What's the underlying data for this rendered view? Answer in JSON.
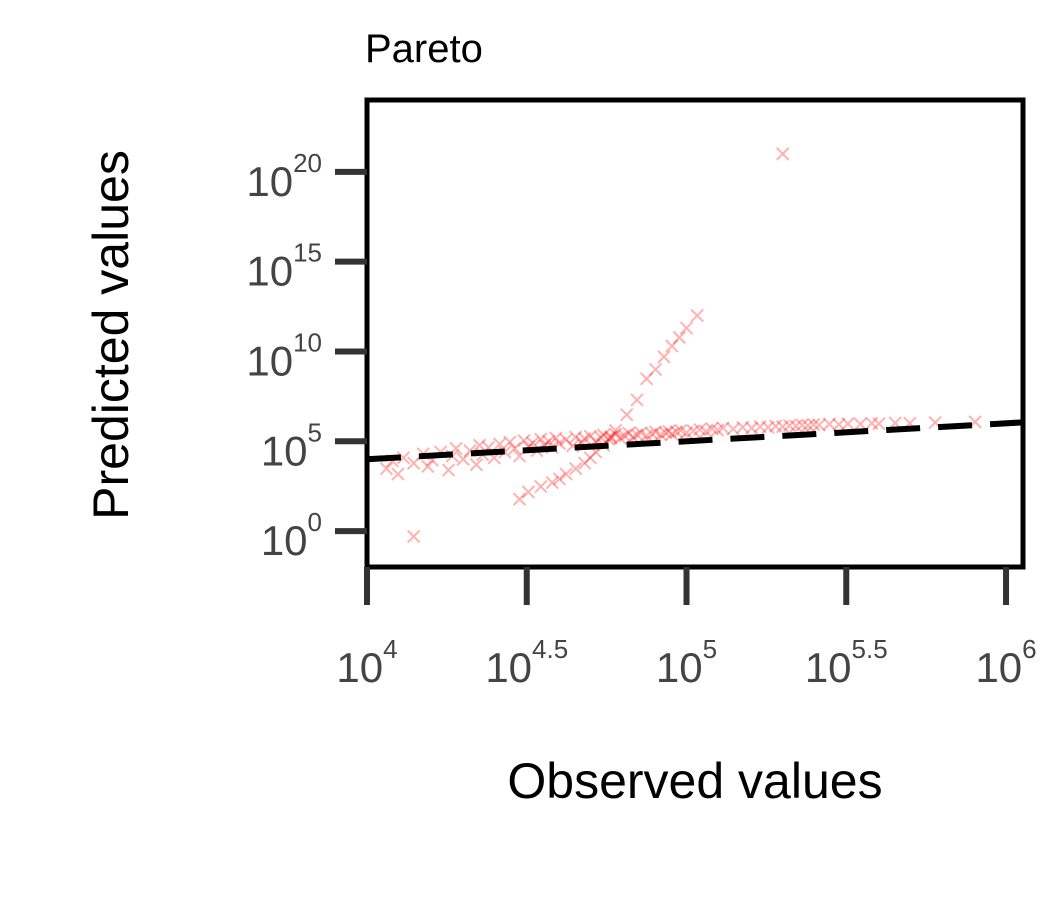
{
  "chart_data": {
    "type": "scatter",
    "title": "Pareto",
    "xlabel": "Observed values",
    "ylabel": "Predicted values",
    "x_scale": "log",
    "y_scale": "log",
    "xlim": [
      10000,
      1130000
    ],
    "ylim": [
      0.01,
      1e+24
    ],
    "x_ticks": [
      {
        "base": "10",
        "exp": "4"
      },
      {
        "base": "10",
        "exp": "4.5"
      },
      {
        "base": "10",
        "exp": "5"
      },
      {
        "base": "10",
        "exp": "5.5"
      },
      {
        "base": "10",
        "exp": "6"
      }
    ],
    "y_ticks": [
      {
        "base": "10",
        "exp": "0"
      },
      {
        "base": "10",
        "exp": "5"
      },
      {
        "base": "10",
        "exp": "10"
      },
      {
        "base": "10",
        "exp": "15"
      },
      {
        "base": "10",
        "exp": "20"
      }
    ],
    "grid": false,
    "marker": "x",
    "marker_color": "#ff0000",
    "reference_line": {
      "style": "dashed",
      "color": "#000000",
      "points": [
        [
          10000,
          10000
        ],
        [
          1130000,
          1130000
        ]
      ]
    },
    "series": [
      {
        "points": [
          [
            11500,
            3000
          ],
          [
            12000,
            8000
          ],
          [
            12500,
            1500
          ],
          [
            13000,
            12000
          ],
          [
            14000,
            6000
          ],
          [
            15000,
            20000
          ],
          [
            15500,
            4000
          ],
          [
            16000,
            9000
          ],
          [
            17000,
            25000
          ],
          [
            18000,
            2500
          ],
          [
            18500,
            15000
          ],
          [
            19000,
            40000
          ],
          [
            20000,
            10000
          ],
          [
            21000,
            30000
          ],
          [
            22000,
            5000
          ],
          [
            22500,
            60000
          ],
          [
            23000,
            18000
          ],
          [
            24000,
            45000
          ],
          [
            25000,
            12000
          ],
          [
            26000,
            70000
          ],
          [
            27000,
            25000
          ],
          [
            28000,
            90000
          ],
          [
            29000,
            40000
          ],
          [
            30000,
            15000
          ],
          [
            31000,
            110000
          ],
          [
            32000,
            50000
          ],
          [
            33000,
            80000
          ],
          [
            34000,
            30000
          ],
          [
            35000,
            130000
          ],
          [
            36000,
            60000
          ],
          [
            37000,
            100000
          ],
          [
            38000,
            45000
          ],
          [
            39000,
            150000
          ],
          [
            40000,
            75000
          ],
          [
            42000,
            120000
          ],
          [
            44000,
            55000
          ],
          [
            45000,
            170000
          ],
          [
            47000,
            90000
          ],
          [
            48000,
            140000
          ],
          [
            50000,
            190000
          ],
          [
            52000,
            100000
          ],
          [
            54000,
            160000
          ],
          [
            55000,
            220000
          ],
          [
            57000,
            130000
          ],
          [
            58000,
            180000
          ],
          [
            60000,
            250000
          ],
          [
            62000,
            150000
          ],
          [
            64000,
            200000
          ],
          [
            66000,
            280000
          ],
          [
            68000,
            170000
          ],
          [
            70000,
            230000
          ],
          [
            72000,
            300000
          ],
          [
            75000,
            200000
          ],
          [
            78000,
            260000
          ],
          [
            80000,
            330000
          ],
          [
            83000,
            230000
          ],
          [
            86000,
            300000
          ],
          [
            88000,
            360000
          ],
          [
            90000,
            250000
          ],
          [
            93000,
            340000
          ],
          [
            96000,
            400000
          ],
          [
            100000,
            300000
          ],
          [
            105000,
            380000
          ],
          [
            110000,
            450000
          ],
          [
            115000,
            350000
          ],
          [
            120000,
            500000
          ],
          [
            125000,
            420000
          ],
          [
            130000,
            550000
          ],
          [
            140000,
            480000
          ],
          [
            150000,
            600000
          ],
          [
            160000,
            540000
          ],
          [
            170000,
            650000
          ],
          [
            180000,
            600000
          ],
          [
            190000,
            700000
          ],
          [
            200000,
            650000
          ],
          [
            210000,
            750000
          ],
          [
            220000,
            700000
          ],
          [
            230000,
            800000
          ],
          [
            240000,
            760000
          ],
          [
            250000,
            850000
          ],
          [
            260000,
            800000
          ],
          [
            280000,
            900000
          ],
          [
            300000,
            850000
          ],
          [
            320000,
            950000
          ],
          [
            350000,
            900000
          ],
          [
            380000,
            1000000
          ],
          [
            400000,
            950000
          ],
          [
            450000,
            1050000
          ],
          [
            500000,
            1000000
          ],
          [
            600000,
            1100000
          ],
          [
            800000,
            1200000
          ],
          [
            30000,
            60
          ],
          [
            32000,
            150
          ],
          [
            35000,
            300
          ],
          [
            38000,
            500
          ],
          [
            40000,
            800
          ],
          [
            42000,
            1500
          ],
          [
            45000,
            3000
          ],
          [
            48000,
            6000
          ],
          [
            50000,
            12000
          ],
          [
            52000,
            25000
          ],
          [
            55000,
            60000
          ],
          [
            58000,
            150000
          ],
          [
            60000,
            400000
          ],
          [
            65000,
            3000000
          ],
          [
            70000,
            20000000
          ],
          [
            75000,
            300000000
          ],
          [
            80000,
            1000000000
          ],
          [
            85000,
            5000000000
          ],
          [
            90000,
            20000000000
          ],
          [
            95000,
            60000000000
          ],
          [
            100000,
            200000000000
          ],
          [
            108000,
            1000000000000
          ],
          [
            14000,
            0.5
          ],
          [
            200000,
            1e+21
          ]
        ]
      }
    ]
  }
}
